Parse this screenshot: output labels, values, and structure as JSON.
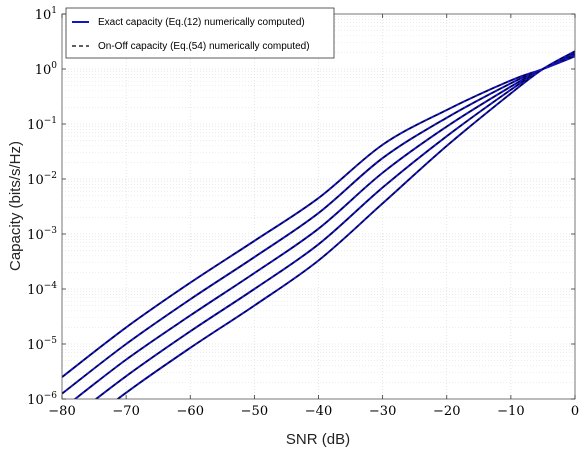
{
  "chart_data": {
    "type": "line",
    "xlabel": "SNR (dB)",
    "ylabel": "Capacity (bits/s/Hz)",
    "xlim": [
      -80,
      0
    ],
    "ylim_exponent": [
      -6,
      1
    ],
    "yscale": "log",
    "grid": true,
    "legend_position": "top-left",
    "x_ticks": [
      "−80",
      "−70",
      "−60",
      "−50",
      "−40",
      "−30",
      "−20",
      "−10",
      "0"
    ],
    "y_ticks": [
      {
        "base": "10",
        "exp": "−6"
      },
      {
        "base": "10",
        "exp": "−5"
      },
      {
        "base": "10",
        "exp": "−4"
      },
      {
        "base": "10",
        "exp": "−3"
      },
      {
        "base": "10",
        "exp": "−2"
      },
      {
        "base": "10",
        "exp": "−1"
      },
      {
        "base": "10",
        "exp": "0"
      },
      {
        "base": "10",
        "exp": "1"
      }
    ],
    "legend": [
      {
        "label": "Exact capacity  (Eq.(12) numerically computed)",
        "color": "#1414c8",
        "dash": "solid"
      },
      {
        "label": "On-Off capacity (Eq.(54) numerically computed)",
        "color": "#000000",
        "dash": "dashed"
      }
    ],
    "x": [
      -80,
      -70,
      -60,
      -50,
      -40,
      -30,
      -20,
      -10,
      -5,
      0
    ],
    "curves": [
      {
        "values": [
          2.5e-06,
          2e-05,
          0.00013,
          0.00075,
          0.0045,
          0.042,
          0.18,
          0.62,
          1.0,
          1.7
        ]
      },
      {
        "values": [
          1.25e-06,
          1e-05,
          6.5e-05,
          0.00038,
          0.0024,
          0.024,
          0.13,
          0.55,
          1.0,
          1.8
        ]
      },
      {
        "values": [
          6.5e-07,
          5.2e-06,
          3.3e-05,
          0.000195,
          0.00125,
          0.013,
          0.09,
          0.48,
          1.0,
          1.9
        ]
      },
      {
        "values": [
          3.3e-07,
          2.6e-06,
          1.7e-05,
          0.0001,
          0.00065,
          0.007,
          0.06,
          0.42,
          1.0,
          2.0
        ]
      },
      {
        "values": [
          1.6e-07,
          1.3e-06,
          8.5e-06,
          5e-05,
          0.00033,
          0.0036,
          0.04,
          0.36,
          1.0,
          2.1
        ]
      }
    ]
  }
}
